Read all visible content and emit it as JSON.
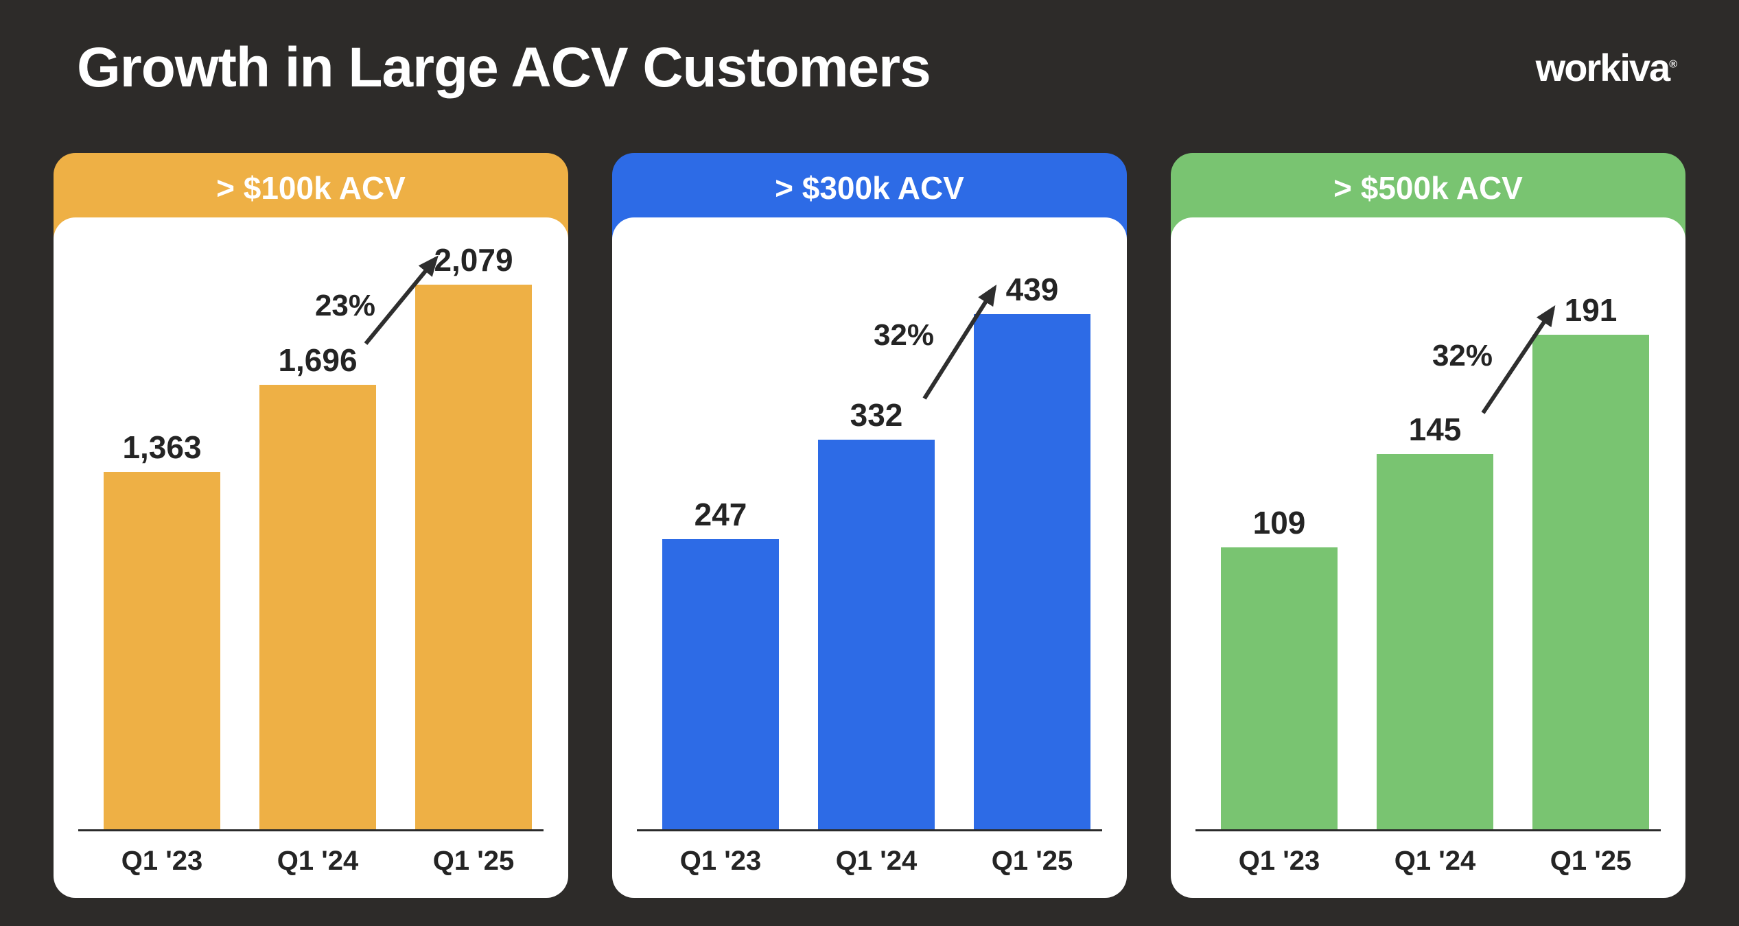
{
  "page": {
    "title": "Growth in Large ACV Customers",
    "brand": "workiva",
    "brand_reg": "®",
    "background_color": "#2d2b29",
    "text_color": "#ffffff"
  },
  "chart_data": [
    {
      "type": "bar",
      "title": "> $100k ACV",
      "accent_color": "#eeb045",
      "categories": [
        "Q1 '23",
        "Q1 '24",
        "Q1 '25"
      ],
      "values": [
        1363,
        1696,
        2079
      ],
      "value_labels": [
        "1,363",
        "1,696",
        "2,079"
      ],
      "growth_label": "23%",
      "legend": "none",
      "grid": false
    },
    {
      "type": "bar",
      "title": "> $300k ACV",
      "accent_color": "#2d6be6",
      "categories": [
        "Q1 '23",
        "Q1 '24",
        "Q1 '25"
      ],
      "values": [
        247,
        332,
        439
      ],
      "value_labels": [
        "247",
        "332",
        "439"
      ],
      "growth_label": "32%",
      "legend": "none",
      "grid": false
    },
    {
      "type": "bar",
      "title": "> $500k ACV",
      "accent_color": "#79c471",
      "categories": [
        "Q1 '23",
        "Q1 '24",
        "Q1 '25"
      ],
      "values": [
        109,
        145,
        191
      ],
      "value_labels": [
        "109",
        "145",
        "191"
      ],
      "growth_label": "32%",
      "legend": "none",
      "grid": false
    }
  ]
}
